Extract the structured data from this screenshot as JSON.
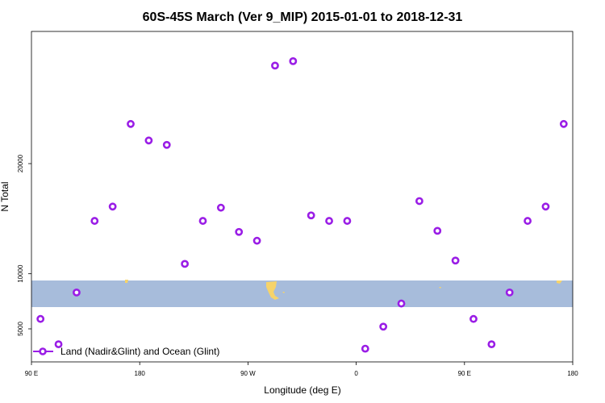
{
  "chart_data": {
    "type": "scatter",
    "title": "60S-45S March (Ver 9_MIP)   2015-01-01 to 2018-12-31",
    "xlabel": "Longitude (deg E)",
    "ylabel": "N Total",
    "x_ticks": [
      "90 E",
      "180",
      "90 W",
      "0",
      "90 E",
      "180"
    ],
    "y_ticks": [
      5000,
      10000,
      20000
    ],
    "xlim": [
      90,
      540
    ],
    "ylim": [
      2000,
      32000
    ],
    "grid": false,
    "legend": {
      "position": "bottom-left"
    },
    "series": [
      {
        "name": "Land (Nadir&Glint) and Ocean (Glint)",
        "color": "#9a1de6",
        "x": [
          97.5,
          112.5,
          127.5,
          142.5,
          157.5,
          172.5,
          187.5,
          202.5,
          217.5,
          232.5,
          247.5,
          262.5,
          277.5,
          292.5,
          307.5,
          322.5,
          337.5,
          352.5,
          367.5,
          382.5,
          397.5,
          412.5,
          427.5,
          442.5,
          457.5,
          472.5,
          487.5,
          502.5,
          517.5,
          532.5
        ],
        "y": [
          5900,
          3600,
          8300,
          14800,
          16100,
          23600,
          22100,
          21700,
          10900,
          14800,
          16000,
          13800,
          13000,
          28900,
          29300,
          15300,
          14800,
          14800,
          3200,
          5200,
          7300,
          16600,
          13900,
          11200,
          5900,
          3600,
          8300,
          14800,
          16100,
          23600
        ]
      }
    ]
  },
  "map_band": {
    "lat_range": [
      -60,
      -45
    ],
    "ocean_color": "#a7bcdb",
    "land_color": "#f6d36a"
  }
}
